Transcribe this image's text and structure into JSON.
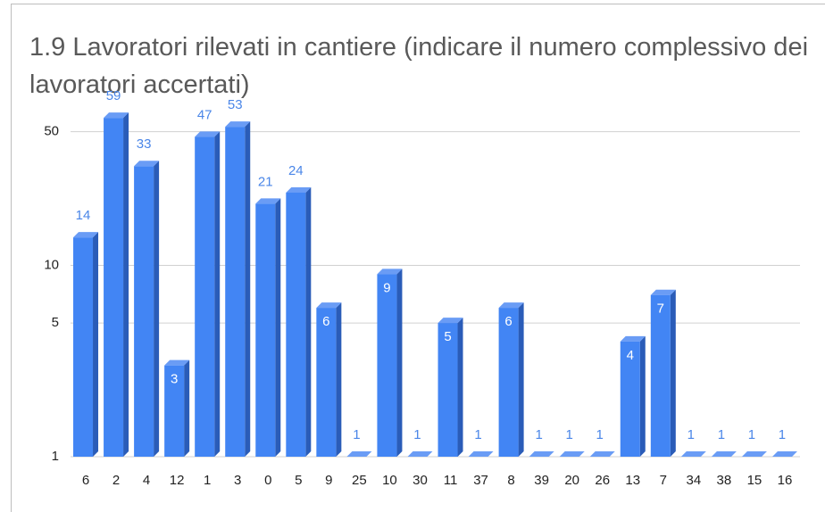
{
  "chart_data": {
    "type": "bar",
    "title": "1.9 Lavoratori rilevati in cantiere (indicare il numero complessivo dei lavoratori accertati)",
    "categories": [
      "6",
      "2",
      "4",
      "12",
      "1",
      "3",
      "0",
      "5",
      "9",
      "25",
      "10",
      "30",
      "11",
      "37",
      "8",
      "39",
      "20",
      "26",
      "13",
      "7",
      "34",
      "38",
      "15",
      "16"
    ],
    "values": [
      14,
      59,
      33,
      3,
      47,
      53,
      21,
      24,
      6,
      1,
      9,
      1,
      5,
      1,
      6,
      1,
      1,
      1,
      4,
      7,
      1,
      1,
      1,
      1
    ],
    "color": "#4285f4",
    "ylim": [
      1,
      100
    ],
    "yticks": [
      1,
      5,
      10,
      50
    ],
    "log_scale": true,
    "grid": true
  }
}
